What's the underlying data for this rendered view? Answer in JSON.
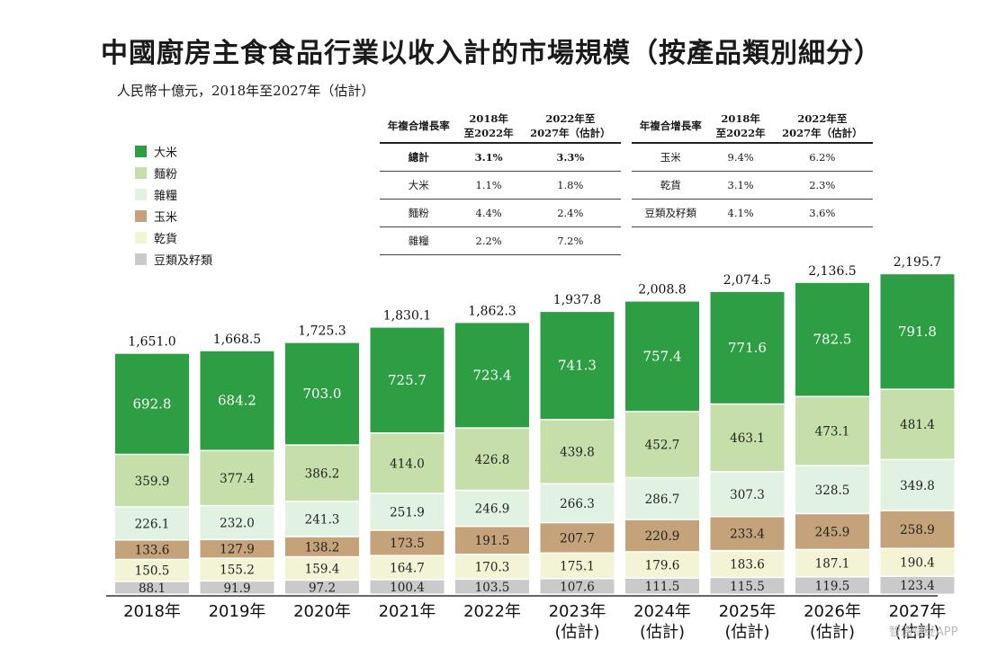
{
  "title": "中國廚房主食食品行業以收入計的市場規模（按產品類別細分）",
  "subtitle": "人民幣十億元，2018年至2027年（估計）",
  "watermark": "智通财经APP",
  "colors": {
    "rice": "#2e9e44",
    "flour": "#c6dfaa",
    "coarse_grains": "#e2f2e2",
    "corn": "#c4a27a",
    "dried_goods": "#f3f3d6",
    "beans_seeds": "#cacaca"
  },
  "growth_table_left": {
    "headers": [
      "年複合增長率",
      "2018年\n至2022年",
      "2022年至\n2027年（估計）"
    ],
    "rows": [
      {
        "label": "總計",
        "a": "3.1%",
        "b": "3.3%"
      },
      {
        "label": "大米",
        "a": "1.1%",
        "b": "1.8%"
      },
      {
        "label": "麵粉",
        "a": "4.4%",
        "b": "2.4%"
      },
      {
        "label": "雜糧",
        "a": "2.2%",
        "b": "7.2%"
      }
    ]
  },
  "growth_table_right": {
    "headers": [
      "年複合增長率",
      "2018年\n至2022年",
      "2022年至\n2027年（估計）"
    ],
    "rows": [
      {
        "label": "玉米",
        "a": "9.4%",
        "b": "6.2%"
      },
      {
        "label": "乾貨",
        "a": "3.1%",
        "b": "2.3%"
      },
      {
        "label": "豆類及籽類",
        "a": "4.1%",
        "b": "3.6%"
      }
    ]
  },
  "chart_data": {
    "type": "bar",
    "stacked": true,
    "categories": [
      "2018年",
      "2019年",
      "2020年",
      "2021年",
      "2022年",
      "2023年\n(估計)",
      "2024年\n(估計)",
      "2025年\n(估計)",
      "2026年\n(估計)",
      "2027年\n(估計)"
    ],
    "series": [
      {
        "name": "豆類及籽類",
        "key": "beans_seeds",
        "values": [
          88.1,
          91.9,
          97.2,
          100.4,
          103.5,
          107.6,
          111.5,
          115.5,
          119.5,
          123.4
        ]
      },
      {
        "name": "乾貨",
        "key": "dried_goods",
        "values": [
          150.5,
          155.2,
          159.4,
          164.7,
          170.3,
          175.1,
          179.6,
          183.6,
          187.1,
          190.4
        ]
      },
      {
        "name": "玉米",
        "key": "corn",
        "values": [
          133.6,
          127.9,
          138.2,
          173.5,
          191.5,
          207.7,
          220.9,
          233.4,
          245.9,
          258.9
        ]
      },
      {
        "name": "雜糧",
        "key": "coarse_grains",
        "values": [
          226.1,
          232.0,
          241.3,
          251.9,
          246.9,
          266.3,
          286.7,
          307.3,
          328.5,
          349.8
        ]
      },
      {
        "name": "麵粉",
        "key": "flour",
        "values": [
          359.9,
          377.4,
          386.2,
          414.0,
          426.8,
          439.8,
          452.7,
          463.1,
          473.1,
          481.4
        ]
      },
      {
        "name": "大米",
        "key": "rice",
        "values": [
          692.8,
          684.2,
          703.0,
          725.7,
          723.4,
          741.3,
          757.4,
          771.6,
          782.5,
          791.8
        ]
      }
    ],
    "series_labels": [
      "88.1",
      "150.5",
      "133.6",
      "226.1",
      "359.9",
      "692.8"
    ],
    "totals": [
      "1,651.0",
      "1,668.5",
      "1,725.3",
      "1,830.1",
      "1,862.3",
      "1,937.8",
      "2,008.8",
      "2,074.5",
      "2,136.5",
      "2,195.7"
    ],
    "legend": [
      "大米",
      "麵粉",
      "雜糧",
      "玉米",
      "乾貨",
      "豆類及籽類"
    ],
    "legend_keys": [
      "rice",
      "flour",
      "coarse_grains",
      "corn",
      "dried_goods",
      "beans_seeds"
    ],
    "unit": "人民幣十億元",
    "ylim": [
      0,
      2200
    ]
  }
}
